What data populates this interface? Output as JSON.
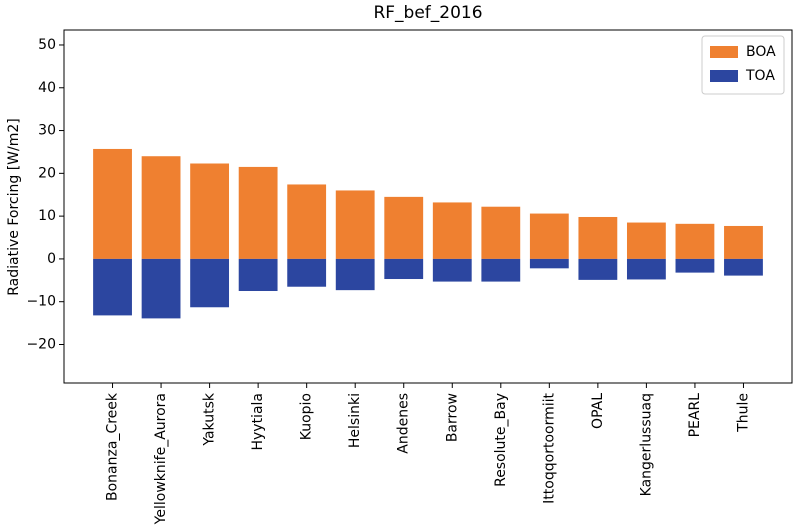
{
  "chart_data": {
    "type": "bar",
    "title": "RF_bef_2016",
    "y_label": "Radiative Forcing [W/m2]",
    "categories": [
      "Bonanza_Creek",
      "Yellowknife_Aurora",
      "Yakutsk",
      "Hyytiala",
      "Kuopio",
      "Helsinki",
      "Andenes",
      "Barrow",
      "Resolute_Bay",
      "Ittoqqortoormiit",
      "OPAL",
      "Kangerlussuaq",
      "PEARL",
      "Thule"
    ],
    "series": [
      {
        "name": "BOA",
        "color": "#ef8030",
        "values": [
          25.7,
          24.0,
          22.3,
          21.5,
          17.4,
          16.0,
          14.5,
          13.2,
          12.2,
          10.6,
          9.8,
          8.5,
          8.2,
          7.7
        ]
      },
      {
        "name": "TOA",
        "color": "#2c46a0",
        "values": [
          -13.2,
          -13.9,
          -11.3,
          -7.5,
          -6.5,
          -7.3,
          -4.7,
          -5.3,
          -5.3,
          -2.2,
          -4.9,
          -4.8,
          -3.2,
          -3.9
        ]
      }
    ],
    "ylim": [
      -29,
      53.5
    ],
    "yticks": [
      {
        "value": -20,
        "label": "−20"
      },
      {
        "value": -10,
        "label": "−10"
      },
      0,
      10,
      20,
      30,
      40,
      50
    ],
    "legend": "upper right"
  }
}
